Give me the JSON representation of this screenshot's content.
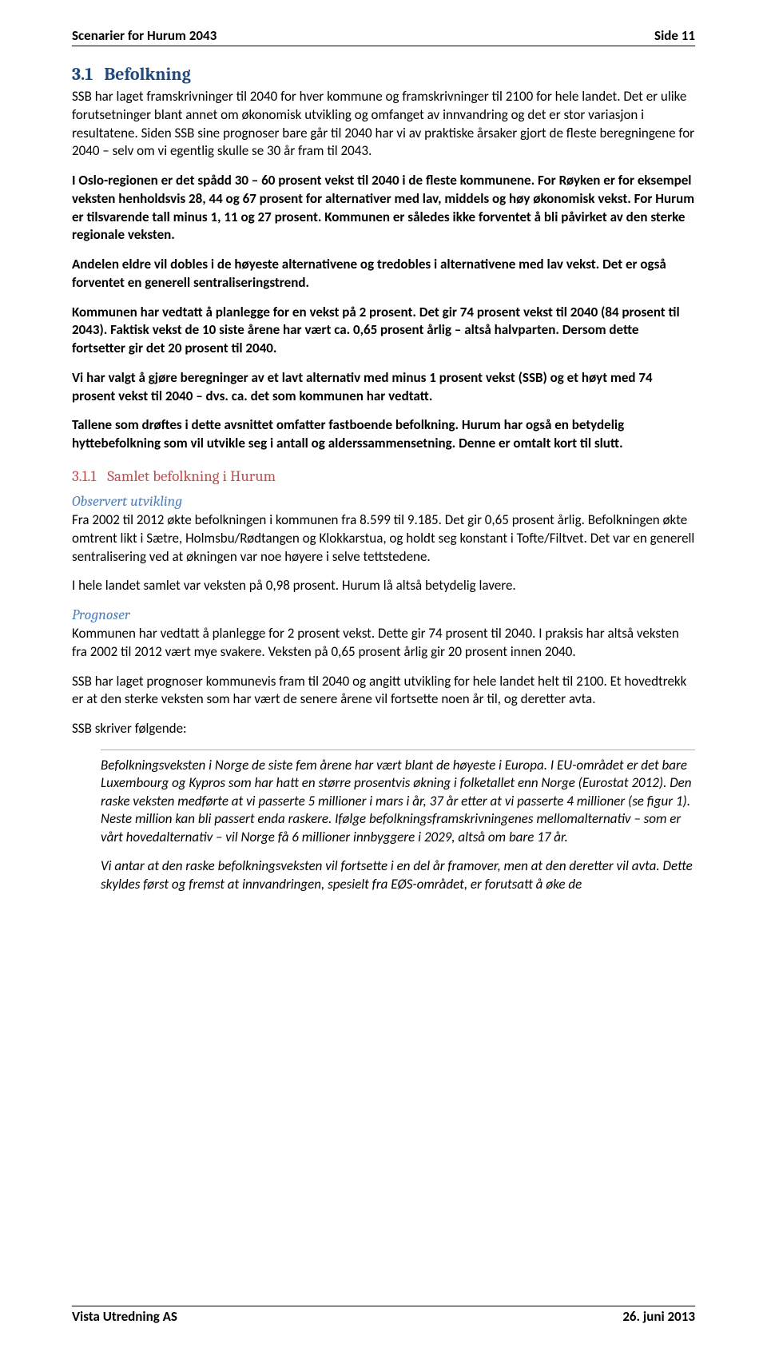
{
  "header": {
    "left": "Scenarier for Hurum 2043",
    "right": "Side 11"
  },
  "section": {
    "number": "3.1",
    "title": "Befolkning"
  },
  "paragraphs": {
    "p1": "SSB har laget framskrivninger til 2040 for hver kommune og framskrivninger til 2100 for hele landet. Det er ulike forutsetninger blant annet om økonomisk utvikling og omfanget av innvandring og det er stor variasjon i resultatene. Siden SSB sine prognoser bare går til 2040 har vi av praktiske årsaker gjort de fleste beregningene for 2040 – selv om vi egentlig skulle se 30 år fram til 2043.",
    "p2": "I Oslo-regionen er det spådd 30 – 60 prosent vekst til 2040 i de fleste kommunene. For Røyken er for eksempel veksten henholdsvis 28, 44 og 67 prosent for alternativer med lav, middels og høy økonomisk vekst. For Hurum er tilsvarende tall minus 1, 11 og 27 prosent. Kommunen er således ikke forventet å bli påvirket av den sterke regionale veksten.",
    "p3": "Andelen eldre vil dobles i de høyeste alternativene og tredobles i alternativene med lav vekst. Det er også forventet en generell sentraliseringstrend.",
    "p4": "Kommunen har vedtatt å planlegge for en vekst på 2 prosent. Det gir 74 prosent vekst til 2040 (84 prosent til 2043). Faktisk vekst de 10 siste årene har vært ca. 0,65 prosent årlig – altså halvparten. Dersom dette fortsetter gir det 20 prosent til 2040.",
    "p5": "Vi har valgt å gjøre beregninger av et lavt alternativ med minus 1 prosent vekst (SSB) og et høyt med 74 prosent vekst til 2040 – dvs. ca. det som kommunen har vedtatt.",
    "p6": "Tallene som drøftes i dette avsnittet omfatter fastboende befolkning. Hurum har også en betydelig hyttebefolkning som vil utvikle seg i antall og alderssammensetning. Denne er omtalt kort til slutt."
  },
  "subsection": {
    "number": "3.1.1",
    "title": "Samlet befolkning i Hurum"
  },
  "observert": {
    "heading": "Observert utvikling",
    "p1": "Fra 2002 til 2012 økte befolkningen i kommunen fra 8.599 til 9.185. Det gir 0,65 prosent årlig. Befolkningen økte omtrent likt i Sætre, Holmsbu/Rødtangen og Klokkarstua, og holdt seg konstant i Tofte/Filtvet. Det var en generell sentralisering ved at økningen var noe høyere i selve tettstedene.",
    "p2": "I hele landet samlet var veksten på 0,98 prosent. Hurum lå altså betydelig lavere."
  },
  "prognoser": {
    "heading": "Prognoser",
    "p1": "Kommunen har vedtatt å planlegge for 2 prosent vekst. Dette gir 74 prosent til 2040. I praksis har altså veksten fra 2002 til 2012 vært mye svakere. Veksten på 0,65 prosent årlig gir 20 prosent innen 2040.",
    "p2": "SSB har laget prognoser kommunevis fram til 2040 og angitt utvikling for hele landet helt til 2100. Et hovedtrekk er at den sterke veksten som har vært de senere årene vil fortsette noen år til, og deretter avta.",
    "p3": "SSB skriver følgende:"
  },
  "quote": {
    "q1": "Befolkningsveksten i Norge de siste fem årene har vært blant de høyeste i Europa. I EU-området er det bare Luxembourg og Kypros som har hatt en større prosentvis økning i folketallet enn Norge (Eurostat 2012). Den raske veksten medførte at vi passerte 5 millioner i mars i år, 37 år etter at vi passerte 4 millioner (se figur 1). Neste million kan bli passert enda raskere. Ifølge befolkningsframskrivningenes mellomalternativ – som er vårt hovedalternativ – vil Norge få 6 millioner innbyggere i 2029, altså om bare 17 år.",
    "q2": "Vi antar at den raske befolkningsveksten vil fortsette i en del år framover, men at den deretter vil avta. Dette skyldes først og fremst at innvandringen, spesielt fra EØS-området, er forutsatt å øke de"
  },
  "footer": {
    "left": "Vista Utredning AS",
    "right": "26. juni 2013"
  }
}
